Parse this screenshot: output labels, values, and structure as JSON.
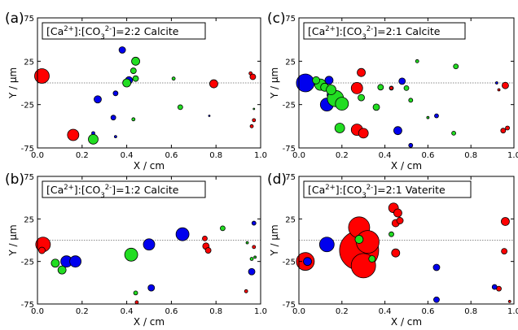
{
  "colors": {
    "red": "#ff0000",
    "green": "#22dd22",
    "blue": "#0000ee"
  },
  "chart_data": [
    {
      "type": "scatter",
      "panel_label": "(a)",
      "title": "[Ca2+]:[CO32-]=2:2 Calcite",
      "xlabel": "X / cm",
      "ylabel": "Y / μm",
      "xlim": [
        0,
        1
      ],
      "ylim": [
        -75,
        75
      ],
      "xticks": [
        "0.0",
        "0.2",
        "0.4",
        "0.6",
        "0.8",
        "1.0"
      ],
      "yticks": [
        "75",
        "25",
        "-25",
        "-75"
      ],
      "points": [
        {
          "x": 0.02,
          "y": 8,
          "r": 9,
          "c": "red"
        },
        {
          "x": 0.16,
          "y": -60,
          "r": 7,
          "c": "red"
        },
        {
          "x": 0.79,
          "y": -1,
          "r": 5,
          "c": "red"
        },
        {
          "x": 0.955,
          "y": 11,
          "r": 2,
          "c": "red"
        },
        {
          "x": 0.965,
          "y": 7,
          "r": 3.5,
          "c": "red"
        },
        {
          "x": 0.97,
          "y": -43,
          "r": 2,
          "c": "red"
        },
        {
          "x": 0.96,
          "y": -50,
          "r": 2,
          "c": "red"
        },
        {
          "x": 0.27,
          "y": -19,
          "r": 4.5,
          "c": "blue"
        },
        {
          "x": 0.35,
          "y": -12,
          "r": 3,
          "c": "blue"
        },
        {
          "x": 0.38,
          "y": 38,
          "r": 4,
          "c": "blue"
        },
        {
          "x": 0.41,
          "y": 3,
          "r": 4.5,
          "c": "blue"
        },
        {
          "x": 0.4,
          "y": -1,
          "r": 3,
          "c": "blue"
        },
        {
          "x": 0.34,
          "y": -40,
          "r": 3,
          "c": "blue"
        },
        {
          "x": 0.25,
          "y": -58,
          "r": 2,
          "c": "blue"
        },
        {
          "x": 0.35,
          "y": -62,
          "r": 1.5,
          "c": "blue"
        },
        {
          "x": 0.25,
          "y": -65,
          "r": 6,
          "c": "green"
        },
        {
          "x": 0.4,
          "y": 0,
          "r": 5,
          "c": "green"
        },
        {
          "x": 0.44,
          "y": 25,
          "r": 5,
          "c": "green"
        },
        {
          "x": 0.43,
          "y": 14,
          "r": 3.5,
          "c": "green"
        },
        {
          "x": 0.44,
          "y": 5,
          "r": 3.5,
          "c": "green"
        },
        {
          "x": 0.43,
          "y": -42,
          "r": 2,
          "c": "green"
        },
        {
          "x": 0.61,
          "y": 5,
          "r": 2,
          "c": "green"
        },
        {
          "x": 0.64,
          "y": -28,
          "r": 3,
          "c": "green"
        },
        {
          "x": 0.77,
          "y": -38,
          "r": 1,
          "c": "blue"
        },
        {
          "x": 0.97,
          "y": -30,
          "r": 1,
          "c": "green"
        }
      ]
    },
    {
      "type": "scatter",
      "panel_label": "(c)",
      "title": "[Ca2+]:[CO32-]=2:1 Calcite",
      "xlabel": "X / cm",
      "ylabel": "Y / μm",
      "xlim": [
        0,
        1
      ],
      "ylim": [
        -75,
        75
      ],
      "xticks": [
        "0.0",
        "0.2",
        "0.4",
        "0.6",
        "0.8",
        "1.0"
      ],
      "yticks": [
        "75",
        "25",
        "-25",
        "-75"
      ],
      "points": [
        {
          "x": 0.03,
          "y": 0,
          "r": 11,
          "c": "blue"
        },
        {
          "x": 0.13,
          "y": -25,
          "r": 8,
          "c": "blue"
        },
        {
          "x": 0.14,
          "y": 3,
          "r": 5,
          "c": "blue"
        },
        {
          "x": 0.15,
          "y": -14,
          "r": 5,
          "c": "blue"
        },
        {
          "x": 0.46,
          "y": -55,
          "r": 5,
          "c": "blue"
        },
        {
          "x": 0.48,
          "y": 2,
          "r": 4,
          "c": "blue"
        },
        {
          "x": 0.43,
          "y": -6,
          "r": 2.5,
          "c": "blue"
        },
        {
          "x": 0.52,
          "y": -72,
          "r": 2.5,
          "c": "blue"
        },
        {
          "x": 0.64,
          "y": -38,
          "r": 2.5,
          "c": "blue"
        },
        {
          "x": 0.92,
          "y": 0,
          "r": 1.5,
          "c": "blue"
        },
        {
          "x": 0.1,
          "y": -2,
          "r": 7,
          "c": "green"
        },
        {
          "x": 0.08,
          "y": 3,
          "r": 4.5,
          "c": "green"
        },
        {
          "x": 0.12,
          "y": -5,
          "r": 5,
          "c": "green"
        },
        {
          "x": 0.17,
          "y": -18,
          "r": 10,
          "c": "green"
        },
        {
          "x": 0.2,
          "y": -24,
          "r": 8,
          "c": "green"
        },
        {
          "x": 0.15,
          "y": -8,
          "r": 6,
          "c": "green"
        },
        {
          "x": 0.19,
          "y": -52,
          "r": 6,
          "c": "green"
        },
        {
          "x": 0.29,
          "y": -17,
          "r": 4,
          "c": "green"
        },
        {
          "x": 0.36,
          "y": -28,
          "r": 4,
          "c": "green"
        },
        {
          "x": 0.38,
          "y": -5,
          "r": 3.5,
          "c": "green"
        },
        {
          "x": 0.5,
          "y": -6,
          "r": 3,
          "c": "green"
        },
        {
          "x": 0.52,
          "y": -20,
          "r": 2.5,
          "c": "green"
        },
        {
          "x": 0.55,
          "y": 25,
          "r": 2,
          "c": "green"
        },
        {
          "x": 0.73,
          "y": 19,
          "r": 3,
          "c": "green"
        },
        {
          "x": 0.72,
          "y": -58,
          "r": 2.5,
          "c": "green"
        },
        {
          "x": 0.6,
          "y": -40,
          "r": 1.5,
          "c": "green"
        },
        {
          "x": 0.27,
          "y": -6,
          "r": 7,
          "c": "red"
        },
        {
          "x": 0.27,
          "y": -54,
          "r": 7,
          "c": "red"
        },
        {
          "x": 0.3,
          "y": -58,
          "r": 6,
          "c": "red"
        },
        {
          "x": 0.29,
          "y": 12,
          "r": 5,
          "c": "red"
        },
        {
          "x": 0.43,
          "y": -6,
          "r": 2,
          "c": "red"
        },
        {
          "x": 0.96,
          "y": -3,
          "r": 4,
          "c": "red"
        },
        {
          "x": 0.95,
          "y": -55,
          "r": 3,
          "c": "red"
        },
        {
          "x": 0.97,
          "y": -52,
          "r": 2.5,
          "c": "red"
        },
        {
          "x": 0.93,
          "y": -8,
          "r": 1.5,
          "c": "red"
        }
      ]
    },
    {
      "type": "scatter",
      "panel_label": "(b)",
      "title": "[Ca2+]:[CO32-]=1:2 Calcite",
      "xlabel": "X / cm",
      "ylabel": "Y / μm",
      "xlim": [
        0,
        1
      ],
      "ylim": [
        -75,
        75
      ],
      "xticks": [
        "0.0",
        "0.2",
        "0.4",
        "0.6",
        "0.8",
        "1.0"
      ],
      "yticks": [
        "75",
        "25",
        "-25",
        "-75"
      ],
      "points": [
        {
          "x": 0.025,
          "y": -5,
          "r": 9,
          "c": "red"
        },
        {
          "x": 0.02,
          "y": -12,
          "r": 4,
          "c": "red"
        },
        {
          "x": 0.75,
          "y": 2,
          "r": 3,
          "c": "red"
        },
        {
          "x": 0.755,
          "y": -7,
          "r": 4,
          "c": "red"
        },
        {
          "x": 0.765,
          "y": -12,
          "r": 3.5,
          "c": "red"
        },
        {
          "x": 0.935,
          "y": -60,
          "r": 2,
          "c": "red"
        },
        {
          "x": 0.97,
          "y": -8,
          "r": 2,
          "c": "red"
        },
        {
          "x": 0.13,
          "y": -25,
          "r": 7,
          "c": "blue"
        },
        {
          "x": 0.17,
          "y": -25,
          "r": 7,
          "c": "blue"
        },
        {
          "x": 0.5,
          "y": -5,
          "r": 7,
          "c": "blue"
        },
        {
          "x": 0.65,
          "y": 7,
          "r": 8,
          "c": "blue"
        },
        {
          "x": 0.51,
          "y": -56,
          "r": 4,
          "c": "blue"
        },
        {
          "x": 0.96,
          "y": -37,
          "r": 4,
          "c": "blue"
        },
        {
          "x": 0.97,
          "y": 20,
          "r": 2.5,
          "c": "blue"
        },
        {
          "x": 0.08,
          "y": -27,
          "r": 5,
          "c": "green"
        },
        {
          "x": 0.11,
          "y": -35,
          "r": 5,
          "c": "green"
        },
        {
          "x": 0.42,
          "y": -17,
          "r": 8,
          "c": "green"
        },
        {
          "x": 0.44,
          "y": -62,
          "r": 2.5,
          "c": "green"
        },
        {
          "x": 0.83,
          "y": 14,
          "r": 3,
          "c": "green"
        },
        {
          "x": 0.96,
          "y": -22,
          "r": 2,
          "c": "green"
        },
        {
          "x": 0.975,
          "y": -20,
          "r": 1.5,
          "c": "green"
        },
        {
          "x": 0.445,
          "y": -73,
          "r": 2,
          "c": "red"
        },
        {
          "x": 0.94,
          "y": -3,
          "r": 1.5,
          "c": "green"
        }
      ]
    },
    {
      "type": "scatter",
      "panel_label": "(d)",
      "title": "[Ca2+]:[CO32-]=2:1 Vaterite",
      "xlabel": "X / cm",
      "ylabel": "Y / μm",
      "xlim": [
        0,
        1
      ],
      "ylim": [
        -75,
        75
      ],
      "xticks": [
        "0.0",
        "0.2",
        "0.4",
        "0.6",
        "0.8",
        "1.0"
      ],
      "yticks": [
        "75",
        "25",
        "-25",
        "-75"
      ],
      "points": [
        {
          "x": 0.03,
          "y": -25,
          "r": 11,
          "c": "red"
        },
        {
          "x": 0.28,
          "y": -12,
          "r": 24,
          "c": "red"
        },
        {
          "x": 0.28,
          "y": 15,
          "r": 13,
          "c": "red"
        },
        {
          "x": 0.3,
          "y": -30,
          "r": 15,
          "c": "red"
        },
        {
          "x": 0.32,
          "y": -2,
          "r": 14,
          "c": "red"
        },
        {
          "x": 0.44,
          "y": 38,
          "r": 6,
          "c": "red"
        },
        {
          "x": 0.46,
          "y": 32,
          "r": 5,
          "c": "red"
        },
        {
          "x": 0.45,
          "y": 20,
          "r": 4.5,
          "c": "red"
        },
        {
          "x": 0.47,
          "y": 23,
          "r": 4,
          "c": "red"
        },
        {
          "x": 0.45,
          "y": -15,
          "r": 5,
          "c": "red"
        },
        {
          "x": 0.96,
          "y": 22,
          "r": 5,
          "c": "red"
        },
        {
          "x": 0.955,
          "y": -13,
          "r": 3.5,
          "c": "red"
        },
        {
          "x": 0.93,
          "y": -57,
          "r": 3,
          "c": "red"
        },
        {
          "x": 0.04,
          "y": -25,
          "r": 5,
          "c": "blue"
        },
        {
          "x": 0.13,
          "y": -5,
          "r": 9,
          "c": "blue"
        },
        {
          "x": 0.64,
          "y": -32,
          "r": 4,
          "c": "blue"
        },
        {
          "x": 0.64,
          "y": -70,
          "r": 3.5,
          "c": "blue"
        },
        {
          "x": 0.91,
          "y": -55,
          "r": 3,
          "c": "blue"
        },
        {
          "x": 0.28,
          "y": 1,
          "r": 5,
          "c": "green"
        },
        {
          "x": 0.34,
          "y": -22,
          "r": 4,
          "c": "green"
        },
        {
          "x": 0.43,
          "y": 7,
          "r": 3,
          "c": "green"
        },
        {
          "x": 0.98,
          "y": -72,
          "r": 1.5,
          "c": "red"
        }
      ]
    }
  ]
}
